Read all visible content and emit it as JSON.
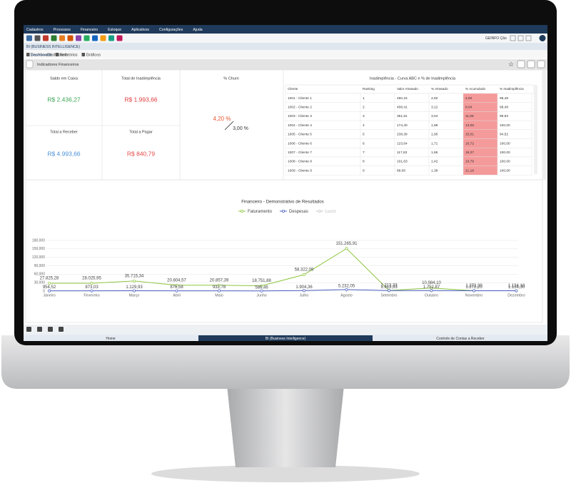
{
  "menu": [
    "Cadastros",
    "Processos",
    "Financeiro",
    "Estoque",
    "Aplicativos",
    "Configurações",
    "Ajuda"
  ],
  "user": "GEINFO Ção",
  "window_title": "BI (BUSINESS INTELLIGENCE)",
  "tabs": [
    "Dashboard",
    "Relatórios",
    "Gráficos"
  ],
  "section_title": "Indicadores Financeiros",
  "cards": [
    {
      "label": "Saldo em Caixa",
      "value": "R$ 2.436,27"
    },
    {
      "label": "Total de Inadimplência",
      "value": "R$ 1.993,66"
    },
    {
      "label": "Total a Receber",
      "value": "R$ 4.993,66"
    },
    {
      "label": "Total a Pagar",
      "value": "R$ 840,79"
    }
  ],
  "churn": {
    "label": "% Churn",
    "current": "4,20 %",
    "previous": "3,00 %"
  },
  "table": {
    "title": "Inadimplência - Curva ABC e % de Inadimplência",
    "headers": [
      "Cliente",
      "Ranking",
      "Valor Atrasado",
      "% Atrasado",
      "% Acumulado",
      "% Inadimplência"
    ],
    "rows": [
      [
        "1001 - Cliente 1",
        "1",
        "450,16",
        "4,92",
        "4,92",
        "98,48"
      ],
      [
        "1002 - Cliente 2",
        "2",
        "408,41",
        "3,12",
        "8,04",
        "98,48"
      ],
      [
        "1003 - Cliente 3",
        "3",
        "351,81",
        "3,04",
        "11,08",
        "99,93"
      ],
      [
        "1004 - Cliente 4",
        "4",
        "174,40",
        "1,98",
        "13,05",
        "100,00"
      ],
      [
        "1005 - Cliente 5",
        "5",
        "238,39",
        "1,95",
        "15,01",
        "94,52"
      ],
      [
        "1006 - Cliente 6",
        "6",
        "123,64",
        "1,71",
        "16,72",
        "100,00"
      ],
      [
        "1007 - Cliente 7",
        "7",
        "117,63",
        "1,66",
        "18,37",
        "100,00"
      ],
      [
        "1008 - Cliente 8",
        "8",
        "101,63",
        "1,42",
        "19,79",
        "100,00"
      ],
      [
        "1009 - Cliente 9",
        "9",
        "89,05",
        "1,39",
        "21,18",
        "100,00"
      ]
    ]
  },
  "chart_data": {
    "type": "line",
    "title": "Financeiro - Demonstrativo de Resultados",
    "categories": [
      "Janeiro",
      "Fevereiro",
      "Março",
      "Abril",
      "Maio",
      "Junho",
      "Julho",
      "Agosto",
      "Setembro",
      "Outubro",
      "Novembro",
      "Dezembro"
    ],
    "series": [
      {
        "name": "Faturamento",
        "color": "#8dc63f",
        "values": [
          27825.28,
          28025.95,
          35715.34,
          20804.57,
          20857.39,
          18751.88,
          58322.09,
          151265.91,
          2213.33,
          10984.1,
          1272.3,
          1134.1
        ],
        "value_labels": [
          "27.825,28",
          "28.025,95",
          "35.715,34",
          "20.804,57",
          "20.857,39",
          "18.751,88",
          "58.322,09",
          "151.265,91",
          "2.213,33",
          "10.984,10",
          "1.272,30",
          "1.134,10"
        ]
      },
      {
        "name": "Despesas",
        "color": "#4a5fc1",
        "values": [
          954.52,
          873.03,
          1129.93,
          876.58,
          932.78,
          586.46,
          1904.36,
          5232.05,
          1913.33,
          1752.87,
          1272.2,
          1134.3
        ],
        "value_labels": [
          "954,52",
          "873,03",
          "1.129,93",
          "876,58",
          "932,78",
          "586,46",
          "1.904,36",
          "5.232,05",
          "1.913,33",
          "1.752,87",
          "1.272,20",
          "1.134,30"
        ]
      },
      {
        "name": "Lucro",
        "color": "#c8c8c8",
        "visible": false
      }
    ],
    "ylim": [
      0,
      180000
    ],
    "yticks": [
      0,
      {
        "value": 30000,
        "label": "30,000"
      },
      {
        "value": 60000,
        "label": "60,000"
      },
      {
        "value": 90000,
        "label": "90,000"
      },
      {
        "value": 120000,
        "label": "120,000"
      },
      {
        "value": 150000,
        "label": "150,000"
      },
      {
        "value": 180000,
        "label": "180,000"
      }
    ],
    "grid": true
  },
  "footer_tabs": [
    "Home",
    "BI (Business Intelligence)",
    "Controle de Contas a Receber"
  ]
}
